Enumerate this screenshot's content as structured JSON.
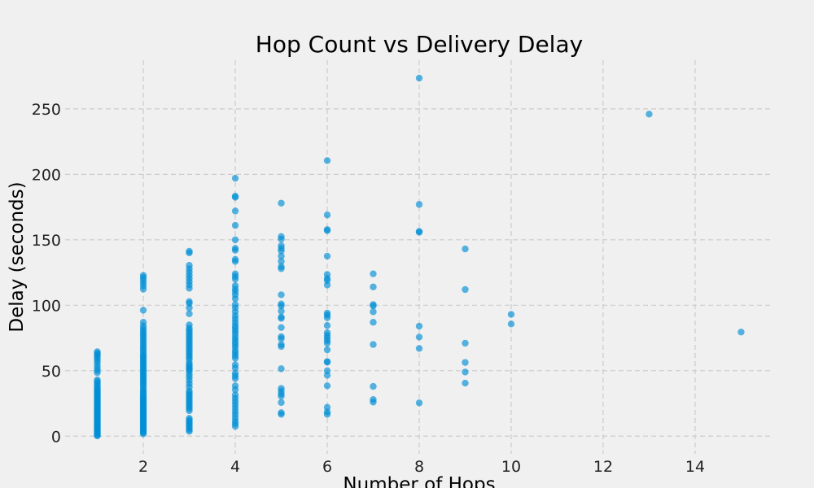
{
  "chart_data": {
    "type": "scatter",
    "title": "Hop Count vs Delivery Delay",
    "xlabel": "Number of Hops",
    "ylabel": "Delay (seconds)",
    "xlim": [
      0.3,
      15.7
    ],
    "ylim": [
      -13.5,
      287.2
    ],
    "xticks": [
      2,
      4,
      6,
      8,
      10,
      12,
      14
    ],
    "yticks": [
      0,
      50,
      100,
      150,
      200,
      250
    ],
    "grid": true,
    "grid_style": "dashed",
    "colors": {
      "points": "#008fd5",
      "background": "#f0f0f0",
      "grid": "#cbcbcb"
    },
    "points": [
      [
        1,
        0.2
      ],
      [
        1,
        0.8
      ],
      [
        1,
        1.5
      ],
      [
        1,
        2.3
      ],
      [
        1,
        3.1
      ],
      [
        1,
        4.0
      ],
      [
        1,
        4.6
      ],
      [
        1,
        5.4
      ],
      [
        1,
        6.2
      ],
      [
        1,
        7.0
      ],
      [
        1,
        7.9
      ],
      [
        1,
        8.5
      ],
      [
        1,
        9.3
      ],
      [
        1,
        10.1
      ],
      [
        1,
        11.0
      ],
      [
        1,
        11.8
      ],
      [
        1,
        12.5
      ],
      [
        1,
        13.4
      ],
      [
        1,
        14.2
      ],
      [
        1,
        15.0
      ],
      [
        1,
        15.9
      ],
      [
        1,
        16.7
      ],
      [
        1,
        17.4
      ],
      [
        1,
        18.3
      ],
      [
        1,
        19.1
      ],
      [
        1,
        20.0
      ],
      [
        1,
        20.8
      ],
      [
        1,
        21.6
      ],
      [
        1,
        22.5
      ],
      [
        1,
        23.3
      ],
      [
        1,
        24.1
      ],
      [
        1,
        25.0
      ],
      [
        1,
        25.8
      ],
      [
        1,
        26.7
      ],
      [
        1,
        27.5
      ],
      [
        1,
        28.4
      ],
      [
        1,
        29.2
      ],
      [
        1,
        30.1
      ],
      [
        1,
        31.0
      ],
      [
        1,
        31.8
      ],
      [
        1,
        32.7
      ],
      [
        1,
        33.5
      ],
      [
        1,
        34.4
      ],
      [
        1,
        35.3
      ],
      [
        1,
        36.1
      ],
      [
        1,
        37.0
      ],
      [
        1,
        38.2
      ],
      [
        1,
        39.5
      ],
      [
        1,
        40.6
      ],
      [
        1,
        41.8
      ],
      [
        1,
        43.0
      ],
      [
        1,
        48.5
      ],
      [
        1,
        50.2
      ],
      [
        1,
        52.0
      ],
      [
        1,
        54.1
      ],
      [
        1,
        56.3
      ],
      [
        1,
        58.0
      ],
      [
        1,
        59.6
      ],
      [
        1,
        61.0
      ],
      [
        1,
        62.2
      ],
      [
        1,
        63.4
      ],
      [
        1,
        64.5
      ],
      [
        2,
        1.8
      ],
      [
        2,
        2.6
      ],
      [
        2,
        3.5
      ],
      [
        2,
        4.3
      ],
      [
        2,
        5.2
      ],
      [
        2,
        6.0
      ],
      [
        2,
        6.9
      ],
      [
        2,
        7.7
      ],
      [
        2,
        8.6
      ],
      [
        2,
        9.4
      ],
      [
        2,
        10.3
      ],
      [
        2,
        11.1
      ],
      [
        2,
        12.0
      ],
      [
        2,
        12.9
      ],
      [
        2,
        13.7
      ],
      [
        2,
        14.6
      ],
      [
        2,
        15.4
      ],
      [
        2,
        16.3
      ],
      [
        2,
        17.1
      ],
      [
        2,
        18.0
      ],
      [
        2,
        18.9
      ],
      [
        2,
        19.7
      ],
      [
        2,
        20.6
      ],
      [
        2,
        21.4
      ],
      [
        2,
        22.3
      ],
      [
        2,
        23.1
      ],
      [
        2,
        24.0
      ],
      [
        2,
        24.9
      ],
      [
        2,
        25.7
      ],
      [
        2,
        26.6
      ],
      [
        2,
        27.4
      ],
      [
        2,
        28.3
      ],
      [
        2,
        29.1
      ],
      [
        2,
        30.0
      ],
      [
        2,
        31.2
      ],
      [
        2,
        32.4
      ],
      [
        2,
        33.6
      ],
      [
        2,
        34.8
      ],
      [
        2,
        36.0
      ],
      [
        2,
        37.5
      ],
      [
        2,
        39.0
      ],
      [
        2,
        40.3
      ],
      [
        2,
        41.5
      ],
      [
        2,
        42.8
      ],
      [
        2,
        44.0
      ],
      [
        2,
        45.3
      ],
      [
        2,
        46.5
      ],
      [
        2,
        47.8
      ],
      [
        2,
        49.0
      ],
      [
        2,
        50.3
      ],
      [
        2,
        51.5
      ],
      [
        2,
        52.8
      ],
      [
        2,
        54.0
      ],
      [
        2,
        55.3
      ],
      [
        2,
        56.5
      ],
      [
        2,
        57.8
      ],
      [
        2,
        59.0
      ],
      [
        2,
        60.3
      ],
      [
        2,
        61.5
      ],
      [
        2,
        62.8
      ],
      [
        2,
        64.5
      ],
      [
        2,
        66.0
      ],
      [
        2,
        67.5
      ],
      [
        2,
        69.0
      ],
      [
        2,
        70.8
      ],
      [
        2,
        72.3
      ],
      [
        2,
        74.0
      ],
      [
        2,
        75.6
      ],
      [
        2,
        77.2
      ],
      [
        2,
        78.9
      ],
      [
        2,
        80.5
      ],
      [
        2,
        82.3
      ],
      [
        2,
        84.2
      ],
      [
        2,
        87.0
      ],
      [
        2,
        96.2
      ],
      [
        2,
        112.3
      ],
      [
        2,
        114.8
      ],
      [
        2,
        117.0
      ],
      [
        2,
        119.3
      ],
      [
        2,
        121.2
      ],
      [
        2,
        122.8
      ],
      [
        3,
        3.7
      ],
      [
        3,
        5.0
      ],
      [
        3,
        6.2
      ],
      [
        3,
        7.5
      ],
      [
        3,
        8.7
      ],
      [
        3,
        10.0
      ],
      [
        3,
        11.2
      ],
      [
        3,
        12.4
      ],
      [
        3,
        13.6
      ],
      [
        3,
        19.5
      ],
      [
        3,
        21.0
      ],
      [
        3,
        22.5
      ],
      [
        3,
        24.0
      ],
      [
        3,
        25.5
      ],
      [
        3,
        27.0
      ],
      [
        3,
        28.5
      ],
      [
        3,
        30.0
      ],
      [
        3,
        31.5
      ],
      [
        3,
        33.0
      ],
      [
        3,
        34.5
      ],
      [
        3,
        37.5
      ],
      [
        3,
        40.0
      ],
      [
        3,
        42.5
      ],
      [
        3,
        45.0
      ],
      [
        3,
        47.0
      ],
      [
        3,
        49.5
      ],
      [
        3,
        50.8
      ],
      [
        3,
        52.0
      ],
      [
        3,
        53.3
      ],
      [
        3,
        54.6
      ],
      [
        3,
        56.0
      ],
      [
        3,
        58.5
      ],
      [
        3,
        60.2
      ],
      [
        3,
        61.8
      ],
      [
        3,
        63.4
      ],
      [
        3,
        65.0
      ],
      [
        3,
        66.6
      ],
      [
        3,
        68.2
      ],
      [
        3,
        69.8
      ],
      [
        3,
        71.4
      ],
      [
        3,
        73.0
      ],
      [
        3,
        74.6
      ],
      [
        3,
        76.2
      ],
      [
        3,
        77.8
      ],
      [
        3,
        79.4
      ],
      [
        3,
        81.0
      ],
      [
        3,
        82.6
      ],
      [
        3,
        85.0
      ],
      [
        3,
        93.5
      ],
      [
        3,
        98.0
      ],
      [
        3,
        101.5
      ],
      [
        3,
        102.8
      ],
      [
        3,
        113.0
      ],
      [
        3,
        115.5
      ],
      [
        3,
        118.0
      ],
      [
        3,
        120.5
      ],
      [
        3,
        122.8
      ],
      [
        3,
        125.3
      ],
      [
        3,
        127.8
      ],
      [
        3,
        130.5
      ],
      [
        3,
        140.0
      ],
      [
        3,
        141.2
      ],
      [
        4,
        7.5
      ],
      [
        4,
        9.5
      ],
      [
        4,
        11.5
      ],
      [
        4,
        14.0
      ],
      [
        4,
        16.5
      ],
      [
        4,
        19.0
      ],
      [
        4,
        21.5
      ],
      [
        4,
        24.0
      ],
      [
        4,
        26.5
      ],
      [
        4,
        29.0
      ],
      [
        4,
        31.5
      ],
      [
        4,
        35.5
      ],
      [
        4,
        38.5
      ],
      [
        4,
        44.0
      ],
      [
        4,
        46.0
      ],
      [
        4,
        48.0
      ],
      [
        4,
        52.0
      ],
      [
        4,
        54.5
      ],
      [
        4,
        59.5
      ],
      [
        4,
        61.5
      ],
      [
        4,
        63.5
      ],
      [
        4,
        65.5
      ],
      [
        4,
        68.0
      ],
      [
        4,
        70.0
      ],
      [
        4,
        72.0
      ],
      [
        4,
        74.0
      ],
      [
        4,
        76.0
      ],
      [
        4,
        78.5
      ],
      [
        4,
        80.5
      ],
      [
        4,
        82.5
      ],
      [
        4,
        84.5
      ],
      [
        4,
        87.0
      ],
      [
        4,
        89.5
      ],
      [
        4,
        92.0
      ],
      [
        4,
        95.0
      ],
      [
        4,
        98.0
      ],
      [
        4,
        100.5
      ],
      [
        4,
        105.0
      ],
      [
        4,
        108.0
      ],
      [
        4,
        110.5
      ],
      [
        4,
        112.5
      ],
      [
        4,
        115.0
      ],
      [
        4,
        120.0
      ],
      [
        4,
        122.0
      ],
      [
        4,
        124.0
      ],
      [
        4,
        133.5
      ],
      [
        4,
        135.0
      ],
      [
        4,
        142.0
      ],
      [
        4,
        143.5
      ],
      [
        4,
        150.0
      ],
      [
        4,
        161.0
      ],
      [
        4,
        172.0
      ],
      [
        4,
        182.5
      ],
      [
        4,
        183.3
      ],
      [
        4,
        197.0
      ],
      [
        5,
        16.7
      ],
      [
        5,
        18.0
      ],
      [
        5,
        25.7
      ],
      [
        5,
        30.5
      ],
      [
        5,
        32.3
      ],
      [
        5,
        34.5
      ],
      [
        5,
        36.5
      ],
      [
        5,
        51.5
      ],
      [
        5,
        68.5
      ],
      [
        5,
        70.0
      ],
      [
        5,
        74.5
      ],
      [
        5,
        76.0
      ],
      [
        5,
        83.0
      ],
      [
        5,
        90.0
      ],
      [
        5,
        91.0
      ],
      [
        5,
        95.5
      ],
      [
        5,
        99.5
      ],
      [
        5,
        101.0
      ],
      [
        5,
        108.0
      ],
      [
        5,
        128.0
      ],
      [
        5,
        129.5
      ],
      [
        5,
        133.5
      ],
      [
        5,
        137.5
      ],
      [
        5,
        141.5
      ],
      [
        5,
        143.5
      ],
      [
        5,
        145.5
      ],
      [
        5,
        150.5
      ],
      [
        5,
        152.5
      ],
      [
        5,
        178.0
      ],
      [
        6,
        16.7
      ],
      [
        6,
        18.5
      ],
      [
        6,
        22.0
      ],
      [
        6,
        38.5
      ],
      [
        6,
        46.5
      ],
      [
        6,
        50.0
      ],
      [
        6,
        56.5
      ],
      [
        6,
        57.0
      ],
      [
        6,
        66.0
      ],
      [
        6,
        71.0
      ],
      [
        6,
        73.0
      ],
      [
        6,
        75.0
      ],
      [
        6,
        77.0
      ],
      [
        6,
        79.0
      ],
      [
        6,
        84.5
      ],
      [
        6,
        90.5
      ],
      [
        6,
        92.5
      ],
      [
        6,
        94.0
      ],
      [
        6,
        115.5
      ],
      [
        6,
        119.0
      ],
      [
        6,
        120.5
      ],
      [
        6,
        123.5
      ],
      [
        6,
        137.5
      ],
      [
        6,
        157.0
      ],
      [
        6,
        157.8
      ],
      [
        6,
        169.0
      ],
      [
        6,
        210.5
      ],
      [
        7,
        26.0
      ],
      [
        7,
        28.0
      ],
      [
        7,
        38.0
      ],
      [
        7,
        70.0
      ],
      [
        7,
        87.0
      ],
      [
        7,
        95.0
      ],
      [
        7,
        99.5
      ],
      [
        7,
        100.5
      ],
      [
        7,
        114.0
      ],
      [
        7,
        124.0
      ],
      [
        8,
        25.4
      ],
      [
        8,
        67.0
      ],
      [
        8,
        75.7
      ],
      [
        8,
        84.0
      ],
      [
        8,
        155.8
      ],
      [
        8,
        156.4
      ],
      [
        8,
        177.0
      ],
      [
        8,
        273.5
      ],
      [
        9,
        40.5
      ],
      [
        9,
        49.0
      ],
      [
        9,
        56.3
      ],
      [
        9,
        71.0
      ],
      [
        9,
        112.0
      ],
      [
        9,
        143.0
      ],
      [
        10,
        85.7
      ],
      [
        10,
        93.0
      ],
      [
        13,
        246.0
      ],
      [
        15,
        79.5
      ]
    ]
  }
}
